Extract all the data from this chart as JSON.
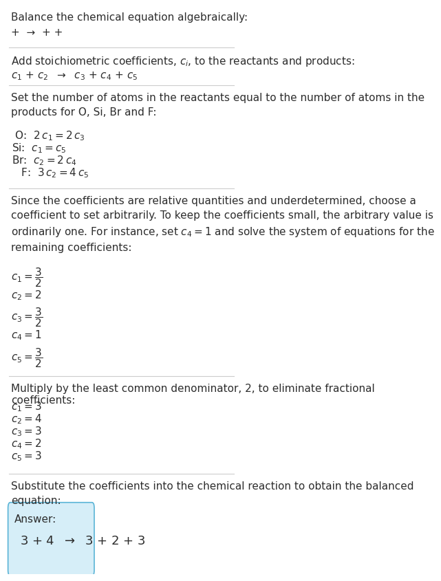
{
  "title": "Balance the chemical equation algebraically:",
  "line1": "+ ➶ + +",
  "section1_title": "Add stoichiometric coefficients, $c_i$, to the reactants and products:",
  "line2": "$c_1$ +$c_2$  ➶ $c_3$ +$c_4$ +$c_5$",
  "section2_title": "Set the number of atoms in the reactants equal to the number of atoms in the\nproducts for O, Si, Br and F:",
  "equations": [
    " O:  $2\\,c_1 = 2\\,c_3$",
    "Si:  $c_1 = c_5$",
    "Br:  $c_2 = 2\\,c_4$",
    "  F:  $3\\,c_2 = 4\\,c_5$"
  ],
  "section3_title": "Since the coefficients are relative quantities and underdetermined, choose a\ncoefficient to set arbitrarily. To keep the coefficients small, the arbitrary value is\nordinarily one. For instance, set $c_4 = 1$ and solve the system of equations for the\nremaining coefficients:",
  "coeffs_initial": [
    "$c_1 = \\dfrac{3}{2}$",
    "$c_2 = 2$",
    "$c_3 = \\dfrac{3}{2}$",
    "$c_4 = 1$",
    "$c_5 = \\dfrac{3}{2}$"
  ],
  "section4_title": "Multiply by the least common denominator, 2, to eliminate fractional coefficients:",
  "coeffs_final": [
    "$c_1 = 3$",
    "$c_2 = 4$",
    "$c_3 = 3$",
    "$c_4 = 2$",
    "$c_5 = 3$"
  ],
  "section5_title": "Substitute the coefficients into the chemical reaction to obtain the balanced\nequation:",
  "answer_label": "Answer:",
  "answer_line": "$3$ +$4$  ➶  $3$ +$2$ +$3$",
  "bg_color": "#ffffff",
  "text_color": "#2d2d2d",
  "answer_box_color": "#d6eef8",
  "answer_box_border": "#5ab4d6",
  "separator_color": "#cccccc",
  "font_size": 11,
  "small_font": 10
}
